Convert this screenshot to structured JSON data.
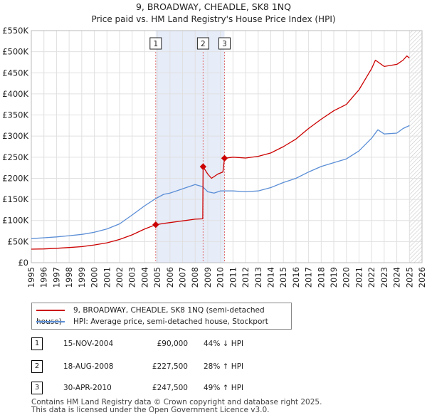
{
  "chart_data": {
    "type": "line",
    "title": "9, BROADWAY, CHEADLE, SK8 1NQ",
    "subtitle": "Price paid vs. HM Land Registry's House Price Index (HPI)",
    "xlim": [
      1995,
      2026
    ],
    "ylim": [
      0,
      550000
    ],
    "x_ticks": [
      1995,
      1996,
      1997,
      1998,
      1999,
      2000,
      2001,
      2002,
      2003,
      2004,
      2005,
      2006,
      2007,
      2008,
      2009,
      2010,
      2011,
      2012,
      2013,
      2014,
      2015,
      2016,
      2017,
      2018,
      2019,
      2020,
      2021,
      2022,
      2023,
      2024,
      2025,
      2026
    ],
    "y_ticks": [
      0,
      50000,
      100000,
      150000,
      200000,
      250000,
      300000,
      350000,
      400000,
      450000,
      500000,
      550000
    ],
    "y_tick_labels": [
      "£0",
      "£50K",
      "£100K",
      "£150K",
      "£200K",
      "£250K",
      "£300K",
      "£350K",
      "£400K",
      "£450K",
      "£500K",
      "£550K"
    ],
    "shaded_range": [
      2004.87,
      2010.33
    ],
    "future_hatch_from": 2025.0,
    "series": [
      {
        "name": "9, BROADWAY, CHEADLE, SK8 1NQ (semi-detached house)",
        "color": "#cc0000",
        "points": [
          [
            1995.0,
            32000
          ],
          [
            1996.0,
            32500
          ],
          [
            1997.0,
            34000
          ],
          [
            1998.0,
            36000
          ],
          [
            1999.0,
            38000
          ],
          [
            2000.0,
            42000
          ],
          [
            2001.0,
            47000
          ],
          [
            2002.0,
            55000
          ],
          [
            2003.0,
            66000
          ],
          [
            2004.0,
            80000
          ],
          [
            2004.87,
            90000
          ],
          [
            2005.5,
            93000
          ],
          [
            2006.0,
            95000
          ],
          [
            2007.0,
            99000
          ],
          [
            2008.0,
            103000
          ],
          [
            2008.6,
            104000
          ],
          [
            2008.63,
            227500
          ],
          [
            2009.0,
            210000
          ],
          [
            2009.3,
            200000
          ],
          [
            2009.8,
            210000
          ],
          [
            2010.2,
            215000
          ],
          [
            2010.33,
            247500
          ],
          [
            2011.0,
            250000
          ],
          [
            2012.0,
            248000
          ],
          [
            2013.0,
            252000
          ],
          [
            2014.0,
            260000
          ],
          [
            2015.0,
            275000
          ],
          [
            2016.0,
            293000
          ],
          [
            2017.0,
            318000
          ],
          [
            2018.0,
            340000
          ],
          [
            2019.0,
            360000
          ],
          [
            2020.0,
            375000
          ],
          [
            2021.0,
            410000
          ],
          [
            2022.0,
            460000
          ],
          [
            2022.3,
            480000
          ],
          [
            2023.0,
            465000
          ],
          [
            2024.0,
            470000
          ],
          [
            2024.5,
            480000
          ],
          [
            2024.8,
            490000
          ],
          [
            2025.0,
            485000
          ]
        ]
      },
      {
        "name": "HPI: Average price, semi-detached house, Stockport",
        "color": "#5b8ed6",
        "points": [
          [
            1995.0,
            57000
          ],
          [
            1996.0,
            59000
          ],
          [
            1997.0,
            61000
          ],
          [
            1998.0,
            64000
          ],
          [
            1999.0,
            67000
          ],
          [
            2000.0,
            72000
          ],
          [
            2001.0,
            80000
          ],
          [
            2002.0,
            92000
          ],
          [
            2003.0,
            113000
          ],
          [
            2004.0,
            135000
          ],
          [
            2004.87,
            152000
          ],
          [
            2005.5,
            162000
          ],
          [
            2006.0,
            165000
          ],
          [
            2007.0,
            175000
          ],
          [
            2008.0,
            185000
          ],
          [
            2008.6,
            180000
          ],
          [
            2009.0,
            168000
          ],
          [
            2009.5,
            165000
          ],
          [
            2010.0,
            170000
          ],
          [
            2011.0,
            170000
          ],
          [
            2012.0,
            168000
          ],
          [
            2013.0,
            170000
          ],
          [
            2014.0,
            178000
          ],
          [
            2015.0,
            190000
          ],
          [
            2016.0,
            200000
          ],
          [
            2017.0,
            215000
          ],
          [
            2018.0,
            228000
          ],
          [
            2019.0,
            237000
          ],
          [
            2020.0,
            246000
          ],
          [
            2021.0,
            265000
          ],
          [
            2022.0,
            295000
          ],
          [
            2022.5,
            315000
          ],
          [
            2023.0,
            305000
          ],
          [
            2024.0,
            307000
          ],
          [
            2024.5,
            318000
          ],
          [
            2025.0,
            325000
          ]
        ]
      }
    ],
    "sale_markers": [
      {
        "label": "1",
        "x": 2004.87,
        "y": 90000
      },
      {
        "label": "2",
        "x": 2008.63,
        "y": 227500
      },
      {
        "label": "3",
        "x": 2010.33,
        "y": 247500
      }
    ]
  },
  "legend": {
    "property_label": "9, BROADWAY, CHEADLE, SK8 1NQ (semi-detached house)",
    "hpi_label": "HPI: Average price, semi-detached house, Stockport",
    "property_color": "#cc0000",
    "hpi_color": "#5b8ed6"
  },
  "sales": [
    {
      "num": "1",
      "date": "15-NOV-2004",
      "price": "£90,000",
      "hpi": "44% ↓ HPI"
    },
    {
      "num": "2",
      "date": "18-AUG-2008",
      "price": "£227,500",
      "hpi": "28% ↑ HPI"
    },
    {
      "num": "3",
      "date": "30-APR-2010",
      "price": "£247,500",
      "hpi": "49% ↑ HPI"
    }
  ],
  "footer": {
    "line1": "Contains HM Land Registry data © Crown copyright and database right 2025.",
    "line2": "This data is licensed under the Open Government Licence v3.0."
  }
}
